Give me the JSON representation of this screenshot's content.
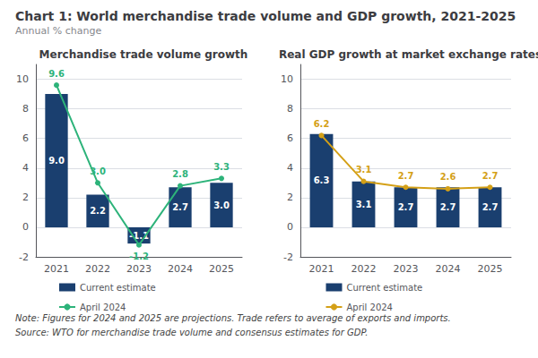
{
  "title": "Chart 1: World merchandise trade volume and GDP growth, 2021-2025",
  "subtitle": "Annual % change",
  "annotations": [
    "Note: Figures for 2024 and 2025 are projections. Trade refers to average of exports and imports.",
    "Source: WTO for merchandise trade volume and consensus estimates for GDP."
  ],
  "chart_data": [
    {
      "type": "bar",
      "title": "Merchandise trade volume growth",
      "categories": [
        "2021",
        "2022",
        "2023",
        "2024",
        "2025"
      ],
      "series": [
        {
          "name": "Current estimate",
          "type": "bar",
          "color": "#1a3f6f",
          "values": [
            9.0,
            2.2,
            -1.1,
            2.7,
            3.0
          ],
          "value_labels": [
            "9.0",
            "2.2",
            "-1.1",
            "2.7",
            "3.0"
          ]
        },
        {
          "name": "April 2024",
          "type": "line",
          "color": "#2db37a",
          "marker": "circle",
          "values": [
            9.6,
            3.0,
            -1.2,
            2.8,
            3.3
          ],
          "value_labels": [
            "9.6",
            "3.0",
            "-1.2",
            "2.8",
            "3.3"
          ]
        }
      ],
      "ylim": [
        -2,
        11
      ],
      "yticks": [
        -2,
        0,
        2,
        4,
        6,
        8,
        10
      ],
      "grid": true,
      "legend": "bottom",
      "data_labels": true
    },
    {
      "type": "bar",
      "title": "Real GDP growth at market exchange rates",
      "categories": [
        "2021",
        "2022",
        "2023",
        "2024",
        "2025"
      ],
      "series": [
        {
          "name": "Current estimate",
          "type": "bar",
          "color": "#1a3f6f",
          "values": [
            6.3,
            3.1,
            2.7,
            2.7,
            2.7
          ]
        },
        {
          "name": "April 2024",
          "type": "line",
          "color": "#d4a017",
          "marker": "circle",
          "values": [
            6.2,
            3.1,
            2.7,
            2.6,
            2.7
          ]
        }
      ],
      "ylim": [
        -2,
        11
      ],
      "yticks": [
        -2,
        0,
        2,
        4,
        6,
        8,
        10
      ],
      "grid": true,
      "legend": "bottom",
      "data_labels": true
    }
  ]
}
